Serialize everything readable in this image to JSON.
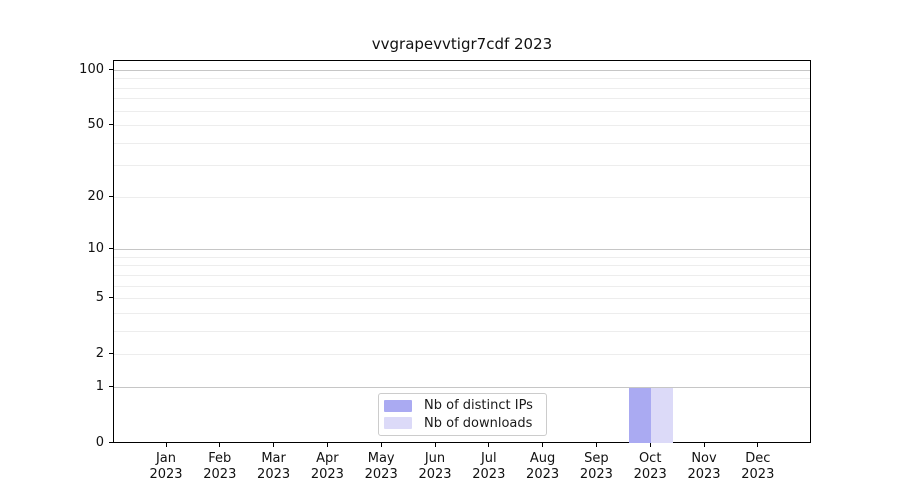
{
  "chart_data": {
    "type": "bar",
    "title": "vvgrapevvtigr7cdf 2023",
    "categories": [
      {
        "month": "Jan",
        "year": "2023"
      },
      {
        "month": "Feb",
        "year": "2023"
      },
      {
        "month": "Mar",
        "year": "2023"
      },
      {
        "month": "Apr",
        "year": "2023"
      },
      {
        "month": "May",
        "year": "2023"
      },
      {
        "month": "Jun",
        "year": "2023"
      },
      {
        "month": "Jul",
        "year": "2023"
      },
      {
        "month": "Aug",
        "year": "2023"
      },
      {
        "month": "Sep",
        "year": "2023"
      },
      {
        "month": "Oct",
        "year": "2023"
      },
      {
        "month": "Nov",
        "year": "2023"
      },
      {
        "month": "Dec",
        "year": "2023"
      }
    ],
    "series": [
      {
        "name": "Nb of distinct IPs",
        "color": "#aaaaf2",
        "values": [
          0,
          0,
          0,
          0,
          0,
          0,
          0,
          0,
          0,
          1,
          0,
          0
        ]
      },
      {
        "name": "Nb of downloads",
        "color": "#dcdaf8",
        "values": [
          0,
          0,
          0,
          0,
          0,
          0,
          0,
          0,
          0,
          1,
          0,
          0
        ]
      }
    ],
    "xlabel": "",
    "ylabel": "",
    "yscale": "symlog",
    "ylim": [
      0,
      113
    ],
    "yticks": [
      0,
      1,
      2,
      5,
      10,
      20,
      50,
      100
    ],
    "y_major_gridlines": [
      1,
      10,
      100
    ],
    "y_minor_gridlines": [
      2,
      3,
      4,
      5,
      6,
      7,
      8,
      9,
      20,
      30,
      40,
      50,
      60,
      70,
      80,
      90
    ],
    "grid": "on",
    "legend_position": "lower center"
  },
  "colors": {
    "major_grid": "#c6c6c6",
    "minor_grid": "#ededed",
    "axis": "#000000",
    "text": "#111111",
    "legend_border": "#cccccc",
    "background": "#ffffff"
  }
}
